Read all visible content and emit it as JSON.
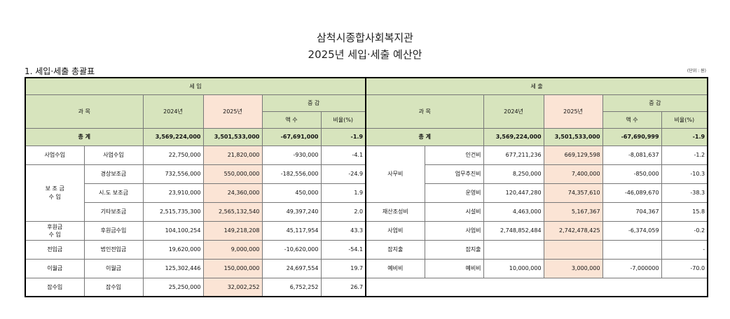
{
  "title": {
    "line1": "삼척시종합사회복지관",
    "line2": "2025년 세입·세출 예산안"
  },
  "section_title": "1. 세입·세출 총괄표",
  "unit_label": "(단위 : 원)",
  "colors": {
    "header_bg": "#d7e4bd",
    "highlight_2025": "#fbe4d5"
  },
  "header": {
    "income": "세          입",
    "expense": "세          출",
    "subject": "과  목",
    "y2024": "2024년",
    "y2025": "2025년",
    "change": "증  감",
    "amount": "액  수",
    "ratio": "비율(%)"
  },
  "total": {
    "label": "총  계",
    "income": {
      "y2024": "3,569,224,000",
      "y2025": "3,501,533,000",
      "amount": "-67,691,000",
      "ratio": "-1.9"
    },
    "expense": {
      "y2024": "3,569,224,000",
      "y2025": "3,501,533,000",
      "amount": "-67,690,999",
      "ratio": "-1.9"
    }
  },
  "income_rows": [
    {
      "cat": "사업수입",
      "sub": "사업수입",
      "y2024": "22,750,000",
      "y2025": "21,820,000",
      "amount": "-930,000",
      "ratio": "-4.1"
    },
    {
      "cat": "보 조 금\n수    입",
      "sub": "경상보조금",
      "y2024": "732,556,000",
      "y2025": "550,000,000",
      "amount": "-182,556,000",
      "ratio": "-24.9"
    },
    {
      "cat": "",
      "sub": "시.도 보조금",
      "y2024": "23,910,000",
      "y2025": "24,360,000",
      "amount": "450,000",
      "ratio": "1.9"
    },
    {
      "cat": "",
      "sub": "기타보조금",
      "y2024": "2,515,735,300",
      "y2025": "2,565,132,540",
      "amount": "49,397,240",
      "ratio": "2.0"
    },
    {
      "cat": "후원금\n수    입",
      "sub": "후원금수입",
      "y2024": "104,100,254",
      "y2025": "149,218,208",
      "amount": "45,117,954",
      "ratio": "43.3"
    },
    {
      "cat": "전입금",
      "sub": "법인전입금",
      "y2024": "19,620,000",
      "y2025": "9,000,000",
      "amount": "-10,620,000",
      "ratio": "-54.1"
    },
    {
      "cat": "이월금",
      "sub": "이월금",
      "y2024": "125,302,446",
      "y2025": "150,000,000",
      "amount": "24,697,554",
      "ratio": "19.7"
    },
    {
      "cat": "잡수입",
      "sub": "잡수입",
      "y2024": "25,250,000",
      "y2025": "32,002,252",
      "amount": "6,752,252",
      "ratio": "26.7"
    }
  ],
  "expense_rows": [
    {
      "cat": "사무비",
      "sub": "인건비",
      "y2024": "677,211,236",
      "y2025": "669,129,598",
      "amount": "-8,081,637",
      "ratio": "-1.2"
    },
    {
      "cat": "",
      "sub": "업무추진비",
      "y2024": "8,250,000",
      "y2025": "7,400,000",
      "amount": "-850,000",
      "ratio": "-10.3"
    },
    {
      "cat": "",
      "sub": "운영비",
      "y2024": "120,447,280",
      "y2025": "74,357,610",
      "amount": "-46,089,670",
      "ratio": "-38.3"
    },
    {
      "cat": "재산조성비",
      "sub": "시설비",
      "y2024": "4,463,000",
      "y2025": "5,167,367",
      "amount": "704,367",
      "ratio": "15.8"
    },
    {
      "cat": "사업비",
      "sub": "사업비",
      "y2024": "2,748,852,484",
      "y2025": "2,742,478,425",
      "amount": "-6,374,059",
      "ratio": "-0.2"
    },
    {
      "cat": "잡지출",
      "sub": "잡지출",
      "y2024": "",
      "y2025": "",
      "amount": "",
      "ratio": "-"
    },
    {
      "cat": "예비비",
      "sub": "예비비",
      "y2024": "10,000,000",
      "y2025": "3,000,000",
      "amount": "-7,000000",
      "ratio": "-70.0"
    }
  ]
}
